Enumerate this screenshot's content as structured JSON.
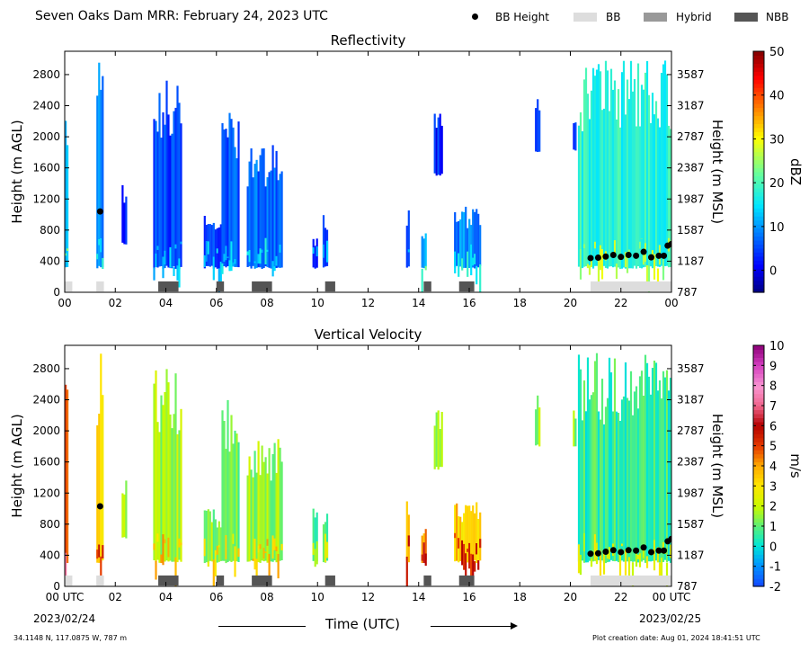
{
  "header": {
    "title": "Seven Oaks Dam MRR:  February 24, 2023 UTC",
    "legend": [
      {
        "label": "BB Height",
        "marker": "dot",
        "color": "#000000"
      },
      {
        "label": "BB",
        "marker": "box",
        "color": "#dddddd"
      },
      {
        "label": "Hybrid",
        "marker": "box",
        "color": "#999999"
      },
      {
        "label": "NBB",
        "marker": "box",
        "color": "#555555"
      }
    ]
  },
  "footer": {
    "location": "34.1148 N, 117.0875 W, 787 m",
    "creation": "Plot creation date: Aug 01, 2024 18:41:51 UTC",
    "start_date": "2023/02/24",
    "end_date": "2023/02/25",
    "time_label": "Time (UTC)"
  },
  "chart_data": [
    {
      "type": "heatmap",
      "title": "Reflectivity",
      "ylabel": "Height (m AGL)",
      "ylabel_right": "Height (m MSL)",
      "colorbar_label": "dBZ",
      "colorbar_ticks": [
        "50",
        "40",
        "30",
        "20",
        "10",
        "0"
      ],
      "colorbar_range": [
        -5,
        50
      ],
      "colormap": "jet",
      "x_ticks": [
        "00",
        "02",
        "04",
        "06",
        "08",
        "10",
        "12",
        "14",
        "16",
        "18",
        "20",
        "22",
        "00"
      ],
      "x_range_hours": [
        0,
        24
      ],
      "y_ticks": [
        0,
        400,
        800,
        1200,
        1600,
        2000,
        2400,
        2800
      ],
      "y_ticks_right": [
        "787",
        "1187",
        "1587",
        "1987",
        "2387",
        "2787",
        "3187",
        "3587"
      ],
      "y_range": [
        0,
        3100
      ],
      "bb_height": [
        [
          1.4,
          1040
        ],
        [
          20.8,
          440
        ],
        [
          21.1,
          445
        ],
        [
          21.4,
          460
        ],
        [
          21.7,
          480
        ],
        [
          22.0,
          455
        ],
        [
          22.3,
          480
        ],
        [
          22.6,
          470
        ],
        [
          22.9,
          520
        ],
        [
          23.2,
          450
        ],
        [
          23.5,
          470
        ],
        [
          23.7,
          470
        ],
        [
          23.85,
          600
        ],
        [
          24.0,
          620
        ]
      ],
      "bb_type": [
        {
          "start": 0.0,
          "end": 0.3,
          "type": "BB"
        },
        {
          "start": 1.25,
          "end": 1.55,
          "type": "BB"
        },
        {
          "start": 3.7,
          "end": 4.5,
          "type": "NBB"
        },
        {
          "start": 6.0,
          "end": 6.3,
          "type": "NBB"
        },
        {
          "start": 7.4,
          "end": 8.2,
          "type": "NBB"
        },
        {
          "start": 10.7,
          "end": 10.3,
          "type": "NBB"
        },
        {
          "start": 14.2,
          "end": 14.5,
          "type": "NBB"
        },
        {
          "start": 15.6,
          "end": 16.2,
          "type": "NBB"
        },
        {
          "start": 20.8,
          "end": 24.0,
          "type": "BB"
        }
      ],
      "echoes": [
        {
          "start": 0.0,
          "end": 0.12,
          "bottom": 300,
          "top": 2600,
          "value": 14
        },
        {
          "start": 1.25,
          "end": 1.5,
          "bottom": 300,
          "top": 3000,
          "value": 8
        },
        {
          "start": 2.25,
          "end": 2.4,
          "bottom": 600,
          "top": 1400,
          "value": 3
        },
        {
          "start": 3.5,
          "end": 4.6,
          "bottom": 300,
          "top": 2800,
          "value": 5
        },
        {
          "start": 5.5,
          "end": 6.2,
          "bottom": 300,
          "top": 1000,
          "value": 4
        },
        {
          "start": 6.2,
          "end": 6.9,
          "bottom": 300,
          "top": 2400,
          "value": 6
        },
        {
          "start": 7.2,
          "end": 8.6,
          "bottom": 300,
          "top": 1900,
          "value": 7
        },
        {
          "start": 9.8,
          "end": 10.0,
          "bottom": 300,
          "top": 700,
          "value": 3
        },
        {
          "start": 10.2,
          "end": 10.4,
          "bottom": 300,
          "top": 1000,
          "value": 6
        },
        {
          "start": 13.5,
          "end": 13.6,
          "bottom": 300,
          "top": 1100,
          "value": 5
        },
        {
          "start": 14.1,
          "end": 14.3,
          "bottom": 300,
          "top": 800,
          "value": 12
        },
        {
          "start": 14.6,
          "end": 14.9,
          "bottom": 1500,
          "top": 2300,
          "value": 3
        },
        {
          "start": 15.4,
          "end": 16.4,
          "bottom": 300,
          "top": 1100,
          "value": 9
        },
        {
          "start": 18.6,
          "end": 18.8,
          "bottom": 1800,
          "top": 2500,
          "value": 4
        },
        {
          "start": 20.1,
          "end": 20.2,
          "bottom": 1800,
          "top": 2300,
          "value": 4
        },
        {
          "start": 20.3,
          "end": 24.0,
          "bottom": 300,
          "top": 3000,
          "value": 18
        }
      ]
    },
    {
      "type": "heatmap",
      "title": "Vertical Velocity",
      "ylabel": "Height (m AGL)",
      "ylabel_right": "Height (m MSL)",
      "colorbar_label": "m/s",
      "colorbar_ticks": [
        "10",
        "9",
        "8",
        "7",
        "6",
        "5",
        "4",
        "3",
        "2",
        "1",
        "0",
        "-1",
        "-2"
      ],
      "colorbar_range": [
        -2,
        10
      ],
      "colormap": "velocity",
      "x_ticks": [
        "00 UTC",
        "02",
        "04",
        "06",
        "08",
        "10",
        "12",
        "14",
        "16",
        "18",
        "20",
        "22",
        "00 UTC"
      ],
      "x_range_hours": [
        0,
        24
      ],
      "y_ticks": [
        0,
        400,
        800,
        1200,
        1600,
        2000,
        2400,
        2800
      ],
      "y_ticks_right": [
        "787",
        "1187",
        "1587",
        "1987",
        "2387",
        "2787",
        "3187",
        "3587"
      ],
      "y_range": [
        0,
        3100
      ],
      "bb_height": [
        [
          1.4,
          1030
        ],
        [
          20.8,
          420
        ],
        [
          21.1,
          425
        ],
        [
          21.4,
          445
        ],
        [
          21.7,
          465
        ],
        [
          22.0,
          440
        ],
        [
          22.3,
          465
        ],
        [
          22.6,
          460
        ],
        [
          22.9,
          500
        ],
        [
          23.2,
          440
        ],
        [
          23.5,
          460
        ],
        [
          23.7,
          460
        ],
        [
          23.85,
          580
        ],
        [
          24.0,
          610
        ]
      ],
      "bb_type": [
        {
          "start": 0.0,
          "end": 0.3,
          "type": "BB"
        },
        {
          "start": 1.25,
          "end": 1.55,
          "type": "BB"
        },
        {
          "start": 3.7,
          "end": 4.5,
          "type": "NBB"
        },
        {
          "start": 6.0,
          "end": 6.3,
          "type": "NBB"
        },
        {
          "start": 7.4,
          "end": 8.2,
          "type": "NBB"
        },
        {
          "start": 10.7,
          "end": 10.3,
          "type": "NBB"
        },
        {
          "start": 14.2,
          "end": 14.5,
          "type": "NBB"
        },
        {
          "start": 15.6,
          "end": 16.2,
          "type": "NBB"
        },
        {
          "start": 20.8,
          "end": 24.0,
          "type": "BB"
        }
      ],
      "echoes": [
        {
          "start": 0.0,
          "end": 0.12,
          "bottom": 300,
          "top": 2600,
          "value": 5
        },
        {
          "start": 1.25,
          "end": 1.5,
          "bottom": 300,
          "top": 3000,
          "value": 3.5
        },
        {
          "start": 2.25,
          "end": 2.4,
          "bottom": 600,
          "top": 1400,
          "value": 1.5
        },
        {
          "start": 3.5,
          "end": 4.6,
          "bottom": 300,
          "top": 2800,
          "value": 1.7
        },
        {
          "start": 5.5,
          "end": 6.2,
          "bottom": 300,
          "top": 1000,
          "value": 1.5
        },
        {
          "start": 6.2,
          "end": 6.9,
          "bottom": 300,
          "top": 2400,
          "value": 1.2
        },
        {
          "start": 7.2,
          "end": 8.6,
          "bottom": 300,
          "top": 1900,
          "value": 1.6
        },
        {
          "start": 9.8,
          "end": 10.0,
          "bottom": 300,
          "top": 1200,
          "value": 0.3
        },
        {
          "start": 10.2,
          "end": 10.4,
          "bottom": 300,
          "top": 1000,
          "value": 0.5
        },
        {
          "start": 13.5,
          "end": 13.6,
          "bottom": 300,
          "top": 1100,
          "value": 4
        },
        {
          "start": 14.1,
          "end": 14.3,
          "bottom": 300,
          "top": 800,
          "value": 4
        },
        {
          "start": 14.6,
          "end": 14.9,
          "bottom": 1500,
          "top": 2300,
          "value": 1.5
        },
        {
          "start": 15.4,
          "end": 16.4,
          "bottom": 300,
          "top": 1100,
          "value": 3.5
        },
        {
          "start": 18.6,
          "end": 18.8,
          "bottom": 1800,
          "top": 2500,
          "value": 1.5
        },
        {
          "start": 20.1,
          "end": 20.2,
          "bottom": 1800,
          "top": 2300,
          "value": 1.5
        },
        {
          "start": 20.3,
          "end": 24.0,
          "bottom": 300,
          "top": 3000,
          "value": 0.6
        }
      ]
    }
  ]
}
